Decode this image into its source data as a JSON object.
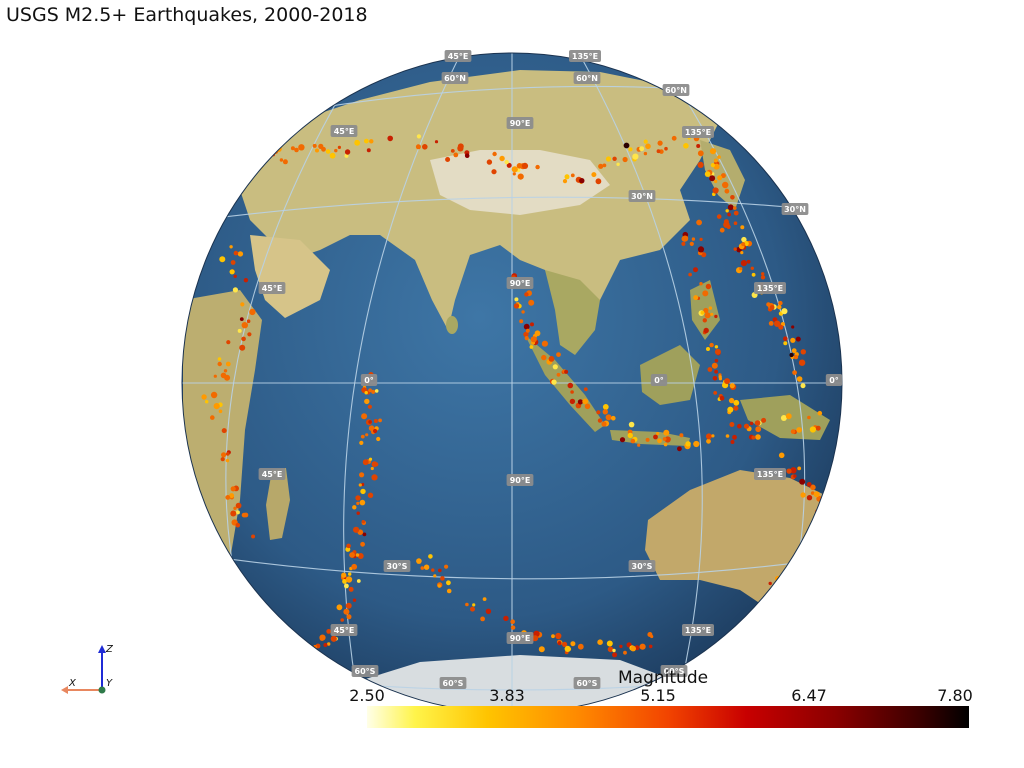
{
  "title": "USGS M2.5+ Earthquakes, 2000-2018",
  "colors": {
    "ocean": "#2f5f8a",
    "land": "#c8b878",
    "graticule": "#b9d2e6",
    "label_bg": "#8c8c8c",
    "x_axis": "#e8875f",
    "z_axis": "#1f2bd6",
    "y_axis": "#2f7a4a"
  },
  "graticule_labels": {
    "meridians": [
      "45°E",
      "90°E",
      "135°E"
    ],
    "parallels": [
      "60°N",
      "30°N",
      "0°",
      "30°S",
      "60°S"
    ]
  },
  "axes_widget": {
    "x": "X",
    "y": "Y",
    "z": "Z"
  },
  "colorbar": {
    "title": "Magnitude",
    "ticks": [
      "2.50",
      "3.83",
      "5.15",
      "6.47",
      "7.80"
    ],
    "range": [
      2.5,
      7.8
    ]
  }
}
